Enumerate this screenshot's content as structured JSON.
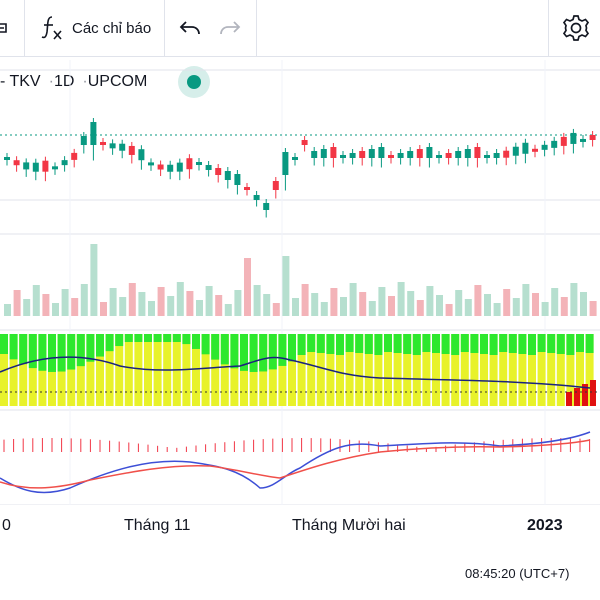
{
  "toolbar": {
    "indicators_label": "Các chỉ báo"
  },
  "symbol_bar": {
    "name": "- TKV",
    "interval": "1D",
    "exchange": "UPCOM"
  },
  "time_axis": {
    "labels": [
      "0",
      "Tháng 11",
      "Tháng Mười hai",
      "2023"
    ]
  },
  "timestamp": "08:45:20 (UTC+7)",
  "colors": {
    "up": "#089981",
    "down": "#f23645",
    "up_volume": "#b6dfcf",
    "down_volume": "#f3b3b8",
    "indicator_green": "#2ee82e",
    "indicator_yellow": "#e8f22a",
    "indicator_red": "#e01010",
    "macd_line": "#3d4fd6",
    "signal_line": "#f0504a"
  },
  "icons": [
    "crosshair-icon",
    "function-icon",
    "undo-icon",
    "redo-icon",
    "gear-icon"
  ]
}
